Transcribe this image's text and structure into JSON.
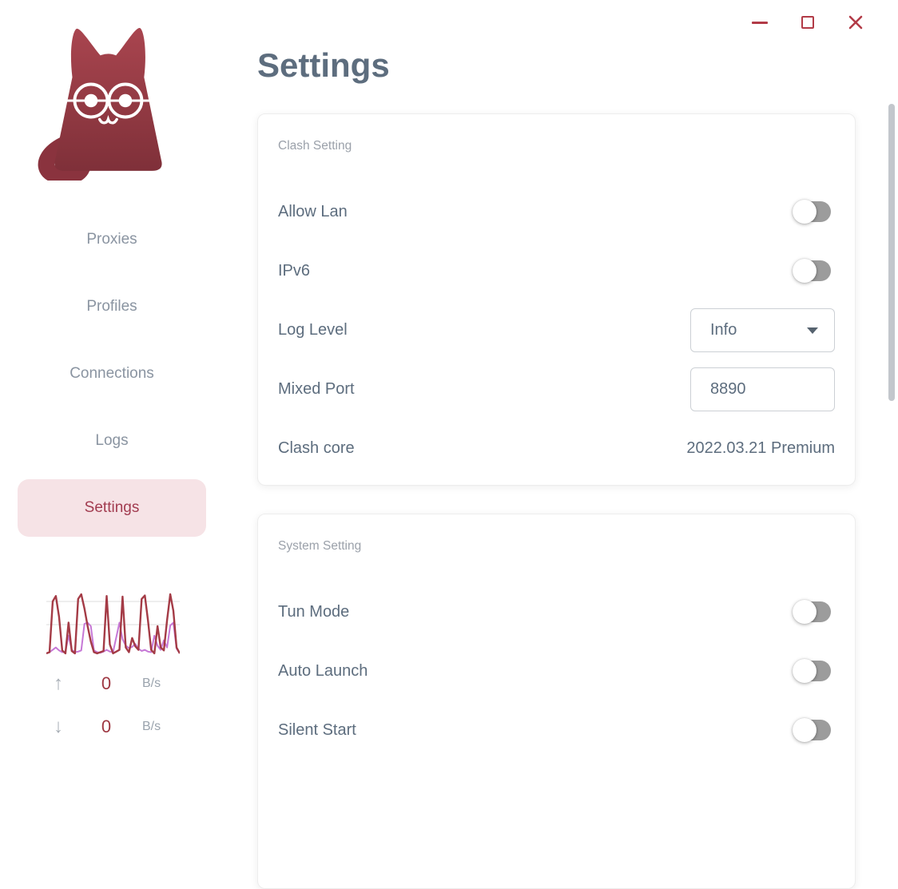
{
  "window": {
    "controls": [
      "minimize",
      "maximize",
      "close"
    ]
  },
  "sidebar": {
    "items": [
      {
        "label": "Proxies",
        "active": false
      },
      {
        "label": "Profiles",
        "active": false
      },
      {
        "label": "Connections",
        "active": false
      },
      {
        "label": "Logs",
        "active": false
      },
      {
        "label": "Settings",
        "active": true
      }
    ],
    "traffic": {
      "up": {
        "value": "0",
        "unit": "B/s"
      },
      "down": {
        "value": "0",
        "unit": "B/s"
      }
    }
  },
  "chart_data": {
    "type": "line",
    "title": "traffic sparkline",
    "ylim": [
      0,
      1
    ],
    "grid": true,
    "series": [
      {
        "name": "upload",
        "color": "#a43b46",
        "width": 2.4,
        "values": [
          0,
          0.02,
          0.88,
          0.97,
          0.62,
          0.05,
          0,
          0.52,
          0.04,
          0,
          0.92,
          1.0,
          0.76,
          0.46,
          0.2,
          0.02,
          0,
          0.02,
          0.04,
          0.97,
          0.15,
          0,
          0.03,
          0.06,
          0.96,
          0.1,
          0.02,
          0.26,
          0.12,
          0.06,
          0.92,
          0.98,
          0.56,
          0.06,
          0,
          0.46,
          0.1,
          0.05,
          0.56,
          1.0,
          0.72,
          0.1,
          0
        ]
      },
      {
        "name": "download",
        "color": "#c678d6",
        "width": 2.0,
        "values": [
          0,
          0.02,
          0.06,
          0.1,
          0.05,
          0.02,
          0.03,
          0.3,
          0.06,
          0.02,
          0.03,
          0.05,
          0.5,
          0.52,
          0.46,
          0.05,
          0.02,
          0.01,
          0.03,
          0.06,
          0.03,
          0.02,
          0.27,
          0.52,
          0.24,
          0.13,
          0.09,
          0.11,
          0.16,
          0.08,
          0.04,
          0.06,
          0.03,
          0.02,
          0.3,
          0.13,
          0.06,
          0.22,
          0.1,
          0.47,
          0.52,
          0.08,
          0
        ]
      }
    ]
  },
  "main": {
    "title": "Settings",
    "cards": [
      {
        "title": "Clash Setting",
        "rows": [
          {
            "label": "Allow Lan",
            "type": "toggle",
            "value": "off"
          },
          {
            "label": "IPv6",
            "type": "toggle",
            "value": "off"
          },
          {
            "label": "Log Level",
            "type": "select",
            "value": "Info"
          },
          {
            "label": "Mixed Port",
            "type": "input",
            "value": "8890"
          },
          {
            "label": "Clash core",
            "type": "text",
            "value": "2022.03.21 Premium"
          }
        ]
      },
      {
        "title": "System Setting",
        "rows": [
          {
            "label": "Tun Mode",
            "type": "toggle",
            "value": "off"
          },
          {
            "label": "Auto Launch",
            "type": "toggle",
            "value": "off"
          },
          {
            "label": "Silent Start",
            "type": "toggle",
            "value": "off"
          }
        ]
      }
    ]
  },
  "colors": {
    "accent": "#b23b47",
    "title_text": "#5d6d7e",
    "nav_text": "#8a94a1",
    "nav_active_bg": "#f6e3e6",
    "nav_active_text": "#a23c50",
    "card_subtitle": "#9ba1aa",
    "toggle_track": "#9c9c9c",
    "upload_line": "#a43b46",
    "download_line": "#c678d6",
    "scrollbar": "#c3c7cc"
  }
}
